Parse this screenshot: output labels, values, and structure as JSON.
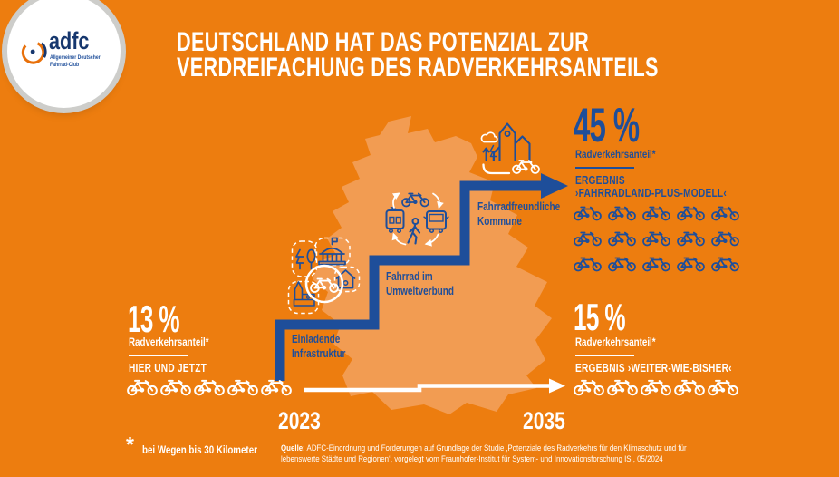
{
  "colors": {
    "background": "#ED7D0F",
    "map": "#F29C52",
    "blue": "#1E4E9A",
    "white": "#FFFFFF",
    "logo_orange": "#E8700A",
    "logo_blue": "#16376E"
  },
  "logo": {
    "brand": "adfc",
    "subtitle_line1": "Allgemeiner Deutscher",
    "subtitle_line2": "Fahrrad-Club"
  },
  "title": {
    "line1": "DEUTSCHLAND HAT DAS POTENZIAL ZUR",
    "line2": "VERDREIFACHUNG DES RADVERKEHRSANTEILS"
  },
  "scenario_now": {
    "value": "13 %",
    "label": "Radverkehrsanteil*",
    "caption": "HIER UND JETZT",
    "bike_count": 5
  },
  "scenario_plus": {
    "value": "45 %",
    "label": "Radverkehrsanteil*",
    "caption_line1": "ERGEBNIS",
    "caption_line2": "›FAHRRADLAND-PLUS-MODELL‹",
    "bike_count": 15
  },
  "scenario_bau": {
    "value": "15 %",
    "label": "Radverkehrsanteil*",
    "caption": "ERGEBNIS ›WEITER-WIE-BISHER‹",
    "bike_count": 5
  },
  "steps": {
    "step1_line1": "Einladende",
    "step1_line2": "Infrastruktur",
    "step2_line1": "Fahrrad im",
    "step2_line2": "Umweltverbund",
    "step3_line1": "Fahrradfreundliche",
    "step3_line2": "Kommune"
  },
  "timeline": {
    "start_year": "2023",
    "end_year": "2035"
  },
  "footnote": {
    "marker": "*",
    "text": "bei Wegen bis 30 Kilometer"
  },
  "source": {
    "label": "Quelle:",
    "line1": "ADFC-Einordnung und Forderungen auf Grundlage der Studie ‚Potenziale des Radverkehrs für den Klimaschutz und für",
    "line2": "lebenswerte Städte und Regionen‘, vorgelegt vom Fraunhofer-Institut für System- und Innovationsforschung ISI, 05/2024"
  },
  "chart_data": {
    "type": "pictogram",
    "title": "Deutschland hat das Potenzial zur Verdreifachung des Radverkehrsanteils",
    "unit": "% Radverkehrsanteil (bei Wegen bis 30 Kilometer)",
    "series": [
      {
        "name": "Hier und jetzt",
        "year": 2023,
        "value": 13,
        "icons": 5
      },
      {
        "name": "Ergebnis ›Weiter-wie-bisher‹",
        "year": 2035,
        "value": 15,
        "icons": 5
      },
      {
        "name": "Ergebnis ›Fahrradland-Plus-Modell‹",
        "year": 2035,
        "value": 45,
        "icons": 15
      }
    ],
    "steps": [
      "Einladende Infrastruktur",
      "Fahrrad im Umweltverbund",
      "Fahrradfreundliche Kommune"
    ]
  }
}
